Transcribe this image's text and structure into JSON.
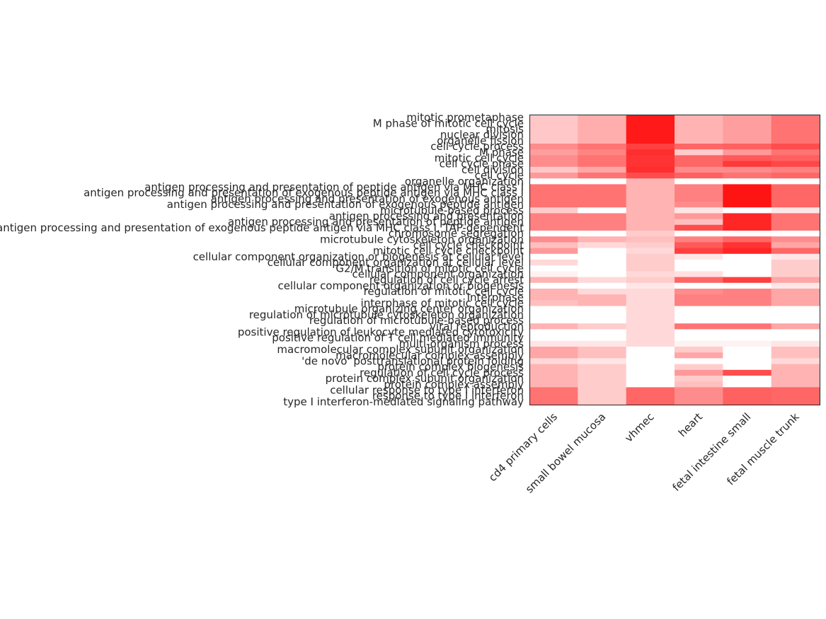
{
  "chart_data": {
    "type": "heatmap",
    "title": "",
    "xlabel": "",
    "ylabel": "",
    "colormap": {
      "low": "#ffffff",
      "high": "#ff0000"
    },
    "value_range": [
      0,
      1
    ],
    "grid": false,
    "columns": [
      "cd4 primary cells",
      "small bowel mucosa",
      "vhmec",
      "heart",
      "fetal intestine small",
      "fetal muscle trunk"
    ],
    "rows": [
      "mitotic prometaphase",
      "M phase of mitotic cell cycle",
      "mitosis",
      "nuclear division",
      "organelle fission",
      "cell cycle process",
      "M phase",
      "mitotic cell cycle",
      "cell cycle phase",
      "cell division",
      "cell cycle",
      "organelle organization",
      "antigen processing and presentation of peptide antigen via MHC class I",
      "antigen processing and presentation of exogenous peptide antigen via MHC class I",
      "antigen processing and presentation of exogenous antigen",
      "antigen processing and presentation of exogenous peptide antigen",
      "microtubule-based process",
      "antigen processing and presentation",
      "antigen processing and presentation of peptide antigen",
      "antigen processing and presentation of exogenous peptide antigen via MHC class I, TAP-dependent",
      "chromosome segregation",
      "microtubule cytoskeleton organization",
      "cell cycle checkpoint",
      "mitotic cell cycle checkpoint",
      "cellular component organization or biogenesis at cellular level",
      "cellular component organization at cellular level",
      "G2/M transition of mitotic cell cycle",
      "cellular component organization",
      "regulation of cell cycle arrest",
      "cellular component organization or biogenesis",
      "regulation of mitotic cell cycle",
      "interphase",
      "interphase of mitotic cell cycle",
      "microtubule organizing center organization",
      "regulation of microtubule cytoskeleton organization",
      "regulation of microtubule-based process",
      "viral reproduction",
      "positive regulation of leukocyte mediated cytotoxicity",
      "positive regulation of T cell mediated immunity",
      "multi-organism process",
      "macromolecular complex subunit organization",
      "macromolecular complex assembly",
      "'de novo' posttranslational protein folding",
      "protein complex biogenesis",
      "regulation of cell cycle process",
      "protein complex subunit organization",
      "protein complex assembly",
      "cellular response to type I interferon",
      "response to type I interferon",
      "type I interferon-mediated signaling pathway"
    ],
    "values": [
      [
        0.22,
        0.32,
        0.9,
        0.3,
        0.38,
        0.55
      ],
      [
        0.22,
        0.32,
        0.9,
        0.3,
        0.38,
        0.55
      ],
      [
        0.22,
        0.32,
        0.9,
        0.3,
        0.38,
        0.55
      ],
      [
        0.22,
        0.32,
        0.9,
        0.3,
        0.38,
        0.55
      ],
      [
        0.22,
        0.32,
        0.9,
        0.3,
        0.38,
        0.55
      ],
      [
        0.45,
        0.55,
        0.75,
        0.6,
        0.62,
        0.7
      ],
      [
        0.38,
        0.48,
        0.82,
        0.2,
        0.4,
        0.55
      ],
      [
        0.45,
        0.55,
        0.8,
        0.6,
        0.65,
        0.62
      ],
      [
        0.45,
        0.55,
        0.8,
        0.6,
        0.78,
        0.72
      ],
      [
        0.22,
        0.35,
        0.82,
        0.45,
        0.45,
        0.5
      ],
      [
        0.4,
        0.55,
        0.7,
        0.62,
        0.55,
        0.6
      ],
      [
        0.0,
        0.0,
        0.3,
        0.0,
        0.0,
        0.0
      ],
      [
        0.55,
        0.55,
        0.3,
        0.5,
        0.92,
        0.6
      ],
      [
        0.55,
        0.55,
        0.3,
        0.5,
        0.92,
        0.6
      ],
      [
        0.55,
        0.55,
        0.3,
        0.5,
        0.92,
        0.6
      ],
      [
        0.55,
        0.55,
        0.3,
        0.45,
        0.92,
        0.6
      ],
      [
        0.2,
        0.0,
        0.3,
        0.1,
        0.0,
        0.1
      ],
      [
        0.5,
        0.5,
        0.3,
        0.4,
        0.85,
        0.55
      ],
      [
        0.5,
        0.5,
        0.3,
        0.25,
        0.85,
        0.55
      ],
      [
        0.5,
        0.5,
        0.3,
        0.7,
        0.85,
        0.55
      ],
      [
        0.0,
        0.0,
        0.2,
        0.0,
        0.0,
        0.0
      ],
      [
        0.45,
        0.3,
        0.25,
        0.5,
        0.6,
        0.45
      ],
      [
        0.25,
        0.15,
        0.2,
        0.65,
        0.8,
        0.35
      ],
      [
        0.4,
        0.0,
        0.15,
        0.75,
        0.85,
        0.6
      ],
      [
        0.0,
        0.0,
        0.2,
        0.1,
        0.0,
        0.1
      ],
      [
        0.15,
        0.0,
        0.2,
        0.0,
        0.0,
        0.2
      ],
      [
        0.0,
        0.0,
        0.2,
        0.0,
        0.0,
        0.2
      ],
      [
        0.05,
        0.0,
        0.15,
        0.12,
        0.0,
        0.2
      ],
      [
        0.3,
        0.15,
        0.2,
        0.6,
        0.75,
        0.35
      ],
      [
        0.0,
        0.0,
        0.1,
        0.0,
        0.0,
        0.1
      ],
      [
        0.3,
        0.15,
        0.15,
        0.45,
        0.5,
        0.35
      ],
      [
        0.3,
        0.3,
        0.15,
        0.5,
        0.5,
        0.35
      ],
      [
        0.25,
        0.3,
        0.15,
        0.5,
        0.5,
        0.35
      ],
      [
        0.0,
        0.0,
        0.15,
        0.0,
        0.0,
        0.0
      ],
      [
        0.0,
        0.0,
        0.15,
        0.0,
        0.0,
        0.0
      ],
      [
        0.0,
        0.0,
        0.15,
        0.0,
        0.0,
        0.0
      ],
      [
        0.3,
        0.2,
        0.15,
        0.55,
        0.55,
        0.35
      ],
      [
        0.0,
        0.0,
        0.15,
        0.0,
        0.0,
        0.0
      ],
      [
        0.0,
        0.0,
        0.15,
        0.0,
        0.0,
        0.0
      ],
      [
        0.1,
        0.1,
        0.15,
        0.05,
        0.05,
        0.1
      ],
      [
        0.35,
        0.25,
        0.0,
        0.2,
        0.0,
        0.25
      ],
      [
        0.35,
        0.25,
        0.0,
        0.35,
        0.0,
        0.25
      ],
      [
        0.15,
        0.1,
        0.0,
        0.0,
        0.0,
        0.15
      ],
      [
        0.3,
        0.2,
        0.0,
        0.2,
        0.0,
        0.3
      ],
      [
        0.3,
        0.2,
        0.0,
        0.4,
        0.7,
        0.3
      ],
      [
        0.3,
        0.2,
        0.0,
        0.2,
        0.0,
        0.3
      ],
      [
        0.3,
        0.2,
        0.0,
        0.25,
        0.0,
        0.3
      ],
      [
        0.55,
        0.2,
        0.6,
        0.45,
        0.62,
        0.6
      ],
      [
        0.55,
        0.2,
        0.6,
        0.45,
        0.62,
        0.6
      ],
      [
        0.55,
        0.2,
        0.6,
        0.45,
        0.62,
        0.6
      ]
    ]
  }
}
